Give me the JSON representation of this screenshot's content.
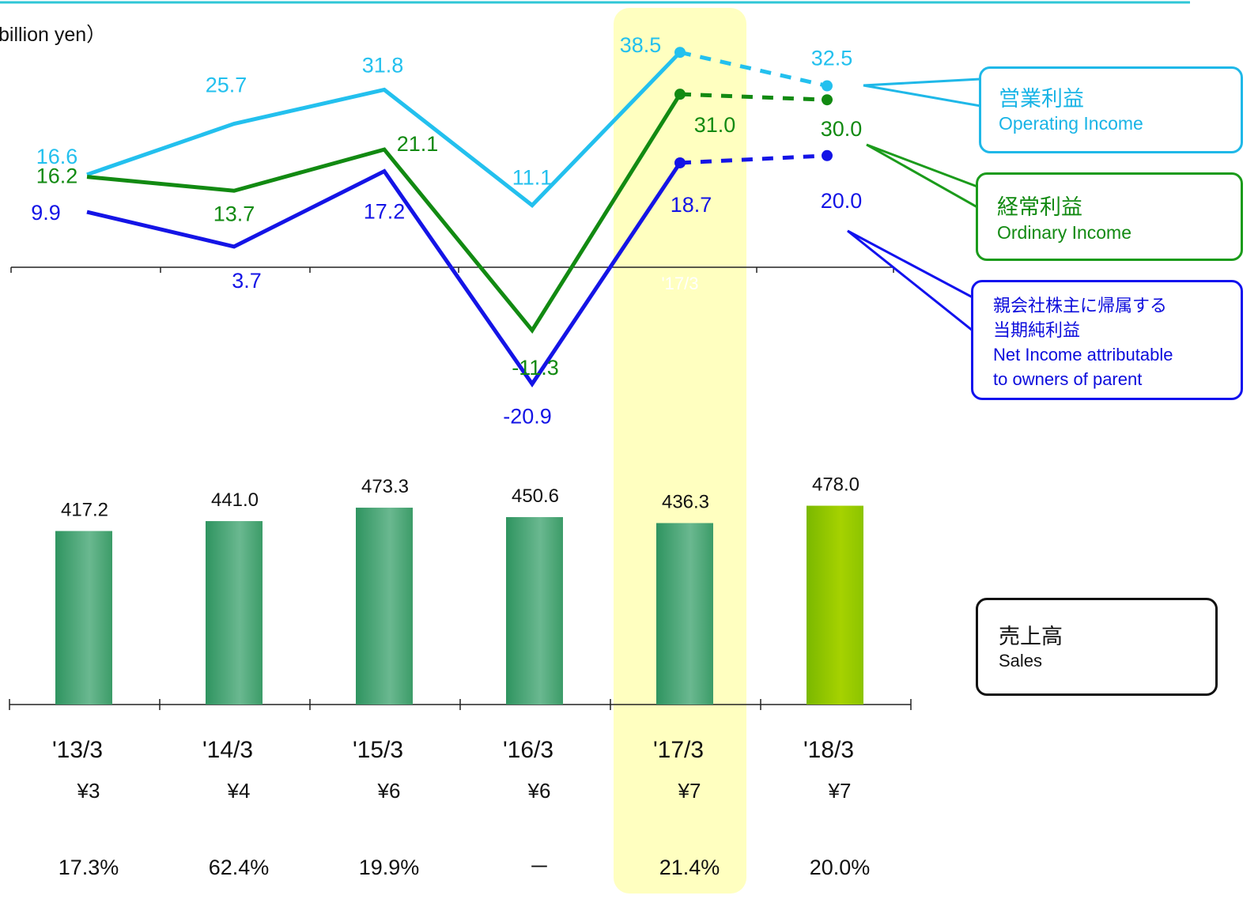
{
  "unit_label": "billion yen）",
  "colors": {
    "operating": "#23c0ee",
    "ordinary": "#128a12",
    "net": "#1414e6",
    "sales_bar": "#3c9c68",
    "sales_forecast": "#8cc400",
    "highlight": "#ffffc0",
    "top_line": "#2ec6d6"
  },
  "legend": {
    "operating": {
      "jp": "営業利益",
      "en": "Operating Income"
    },
    "ordinary": {
      "jp": "経常利益",
      "en": "Ordinary Income"
    },
    "net": {
      "jp_line1": "親会社株主に帰属する",
      "jp_line2": "当期純利益",
      "en_line1": "Net Income  attributable",
      "en_line2": "to owners of parent"
    },
    "sales": {
      "jp": "売上高",
      "en": "Sales"
    }
  },
  "chart_data": {
    "type": "bar+line",
    "categories": [
      "'13/3",
      "'14/3",
      "'15/3",
      "'16/3",
      "'17/3",
      "'18/3"
    ],
    "highlighted_category": "'17/3",
    "forecast_category": "'18/3",
    "sales": {
      "name": "Sales",
      "values": [
        417.2,
        441.0,
        473.3,
        450.6,
        436.3,
        478.0
      ],
      "labels": [
        "417.2",
        "441.0",
        "473.3",
        "450.6",
        "436.3",
        "478.0"
      ]
    },
    "series": [
      {
        "key": "operating",
        "name": "Operating Income",
        "values": [
          16.6,
          25.7,
          31.8,
          11.1,
          38.5,
          32.5
        ],
        "labels": [
          "16.6",
          "25.7",
          "31.8",
          "11.1",
          "38.5",
          "32.5"
        ]
      },
      {
        "key": "ordinary",
        "name": "Ordinary Income",
        "values": [
          16.2,
          13.7,
          21.1,
          -11.3,
          31.0,
          30.0
        ],
        "labels": [
          "16.2",
          "13.7",
          "21.1",
          "-11.3",
          "31.0",
          "30.0"
        ]
      },
      {
        "key": "net",
        "name": "Net Income attributable to owners of parent",
        "values": [
          9.9,
          3.7,
          17.2,
          -20.9,
          18.7,
          20.0
        ],
        "labels": [
          "9.9",
          "3.7",
          "17.2",
          "-20.9",
          "18.7",
          "20.0"
        ]
      }
    ],
    "dividends": [
      "¥3",
      "¥4",
      "¥6",
      "¥6",
      "¥7",
      "¥7"
    ],
    "payout_ratios": [
      "17.3%",
      "62.4%",
      "19.9%",
      "－",
      "21.4%",
      "20.0%"
    ],
    "hidden_label": "'17/3"
  }
}
